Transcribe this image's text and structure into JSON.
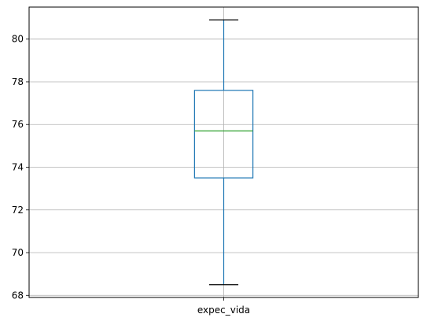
{
  "chart_data": {
    "type": "box",
    "title": "",
    "xlabel": "",
    "ylabel": "",
    "categories": [
      "expec_vida"
    ],
    "boxes": [
      {
        "label": "expec_vida",
        "whisker_low": 68.5,
        "q1": 73.5,
        "median": 75.7,
        "q3": 77.6,
        "whisker_high": 80.9
      }
    ],
    "ylim": [
      67.9,
      81.5
    ],
    "yticks": [
      68,
      70,
      72,
      74,
      76,
      78,
      80
    ],
    "grid": true,
    "colors": {
      "box": "#1f77b4",
      "median": "#2ca02c",
      "caps": "#000000",
      "grid": "#b0b0b0",
      "axes": "#000000"
    }
  }
}
